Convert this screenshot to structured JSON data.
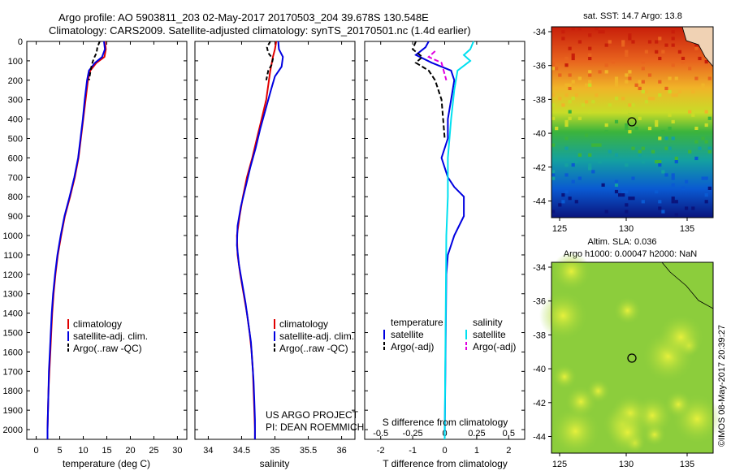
{
  "header": {
    "line1": "Argo profile: AO 5903811_203 02-May-2017 20170503_204 39.678S 130.548E",
    "line2": "Climatology: CARS2009. Satellite-adjusted climatology: synTS_20170501.nc (1.4d earlier)"
  },
  "colors": {
    "climatology": "#e00000",
    "satellite": "#0000e0",
    "argo": "#000000",
    "sat_salinity": "#00e0f0",
    "argo_salinity": "#e000e0"
  },
  "depth_ticks": [
    "0",
    "100",
    "200",
    "300",
    "400",
    "500",
    "600",
    "700",
    "800",
    "900",
    "1000",
    "1100",
    "1200",
    "1300",
    "1400",
    "1500",
    "1600",
    "1700",
    "1800",
    "1900",
    "2000"
  ],
  "chart_data": [
    {
      "type": "line",
      "xlabel": "temperature (deg C)",
      "xlim": [
        -2,
        32
      ],
      "ylim": [
        2050,
        0
      ],
      "xticks": [
        "0",
        "5",
        "10",
        "15",
        "20",
        "25",
        "30"
      ],
      "legend": [
        "climatology",
        "satellite-adj. clim.",
        "Argo(..raw -QC)"
      ],
      "series": [
        {
          "name": "climatology",
          "points": [
            [
              14.6,
              0
            ],
            [
              14.8,
              40
            ],
            [
              14.5,
              80
            ],
            [
              12.8,
              110
            ],
            [
              11.5,
              150
            ],
            [
              11.0,
              200
            ],
            [
              10.5,
              300
            ],
            [
              10.0,
              400
            ],
            [
              9.5,
              500
            ],
            [
              9.0,
              600
            ],
            [
              8.2,
              700
            ],
            [
              7.2,
              800
            ],
            [
              6.1,
              900
            ],
            [
              5.3,
              1000
            ],
            [
              4.6,
              1100
            ],
            [
              4.1,
              1200
            ],
            [
              3.7,
              1300
            ],
            [
              3.4,
              1400
            ],
            [
              3.2,
              1500
            ],
            [
              3.0,
              1600
            ],
            [
              2.8,
              1700
            ],
            [
              2.6,
              1800
            ],
            [
              2.5,
              1900
            ],
            [
              2.4,
              2000
            ],
            [
              2.4,
              2050
            ]
          ]
        },
        {
          "name": "satellite-adj. clim.",
          "points": [
            [
              14.4,
              0
            ],
            [
              14.6,
              40
            ],
            [
              14.0,
              80
            ],
            [
              12.5,
              110
            ],
            [
              11.2,
              150
            ],
            [
              10.8,
              200
            ],
            [
              10.3,
              300
            ],
            [
              9.9,
              400
            ],
            [
              9.4,
              500
            ],
            [
              8.9,
              600
            ],
            [
              8.1,
              700
            ],
            [
              7.1,
              800
            ],
            [
              6.0,
              900
            ],
            [
              5.2,
              1000
            ],
            [
              4.5,
              1100
            ],
            [
              4.0,
              1200
            ],
            [
              3.6,
              1300
            ],
            [
              3.3,
              1400
            ],
            [
              3.1,
              1500
            ],
            [
              2.9,
              1600
            ],
            [
              2.7,
              1700
            ],
            [
              2.6,
              1800
            ],
            [
              2.5,
              1900
            ],
            [
              2.4,
              2000
            ],
            [
              2.4,
              2050
            ]
          ]
        },
        {
          "name": "Argo(..raw -QC)",
          "points": [
            [
              13.5,
              0
            ],
            [
              13.0,
              30
            ],
            [
              12.8,
              60
            ],
            [
              12.2,
              90
            ],
            [
              11.8,
              120
            ],
            [
              11.5,
              160
            ],
            [
              11.2,
              200
            ]
          ]
        }
      ]
    },
    {
      "type": "line",
      "xlabel": "salinity",
      "xlim": [
        33.8,
        36.2
      ],
      "ylim": [
        2050,
        0
      ],
      "xticks": [
        "34",
        "34.5",
        "35",
        "35.5",
        "36"
      ],
      "legend": [
        "climatology",
        "satellite-adj. clim.",
        "Argo(..raw -QC)"
      ],
      "annotation": [
        "US ARGO PROJECT",
        "PI: DEAN ROEMMICH"
      ],
      "series": [
        {
          "name": "climatology",
          "points": [
            [
              35.02,
              0
            ],
            [
              35.0,
              40
            ],
            [
              34.97,
              80
            ],
            [
              34.93,
              150
            ],
            [
              34.87,
              300
            ],
            [
              34.8,
              400
            ],
            [
              34.73,
              500
            ],
            [
              34.66,
              600
            ],
            [
              34.58,
              700
            ],
            [
              34.52,
              800
            ],
            [
              34.47,
              900
            ],
            [
              34.43,
              1000
            ],
            [
              34.44,
              1100
            ],
            [
              34.48,
              1200
            ],
            [
              34.53,
              1300
            ],
            [
              34.58,
              1400
            ],
            [
              34.62,
              1500
            ],
            [
              34.65,
              1600
            ],
            [
              34.67,
              1700
            ],
            [
              34.68,
              1800
            ],
            [
              34.69,
              1900
            ],
            [
              34.7,
              2000
            ],
            [
              34.7,
              2050
            ]
          ]
        },
        {
          "name": "satellite-adj. clim.",
          "points": [
            [
              35.05,
              0
            ],
            [
              35.06,
              40
            ],
            [
              35.12,
              80
            ],
            [
              35.1,
              130
            ],
            [
              35.0,
              180
            ],
            [
              34.94,
              250
            ],
            [
              34.86,
              350
            ],
            [
              34.78,
              450
            ],
            [
              34.71,
              550
            ],
            [
              34.63,
              650
            ],
            [
              34.56,
              750
            ],
            [
              34.49,
              850
            ],
            [
              34.44,
              950
            ],
            [
              34.43,
              1050
            ],
            [
              34.46,
              1150
            ],
            [
              34.51,
              1250
            ],
            [
              34.56,
              1350
            ],
            [
              34.6,
              1450
            ],
            [
              34.64,
              1550
            ],
            [
              34.66,
              1650
            ],
            [
              34.68,
              1750
            ],
            [
              34.69,
              1850
            ],
            [
              34.7,
              1950
            ],
            [
              34.7,
              2050
            ]
          ]
        },
        {
          "name": "Argo(..raw -QC)",
          "points": [
            [
              34.93,
              0
            ],
            [
              34.88,
              30
            ],
            [
              34.9,
              60
            ],
            [
              34.97,
              90
            ],
            [
              34.95,
              120
            ],
            [
              34.9,
              150
            ],
            [
              34.87,
              200
            ]
          ]
        }
      ]
    },
    {
      "type": "line",
      "xlabel": "T difference from climatology",
      "xlabel_top": "S difference from climatology",
      "xlim": [
        -2.5,
        2.5
      ],
      "ylim": [
        2050,
        0
      ],
      "xticks": [
        "-2",
        "-1",
        "0",
        "1",
        "2"
      ],
      "xticks_s": [
        "-0.5",
        "-0.25",
        "0",
        "0.25",
        "0.5"
      ],
      "legend_t": [
        "temperature",
        "satellite",
        "Argo(-adj)"
      ],
      "legend_s": [
        "salinity",
        "satellite",
        "Argo(-adj)"
      ],
      "series": [
        {
          "name": "temperature satellite",
          "points": [
            [
              -0.5,
              0
            ],
            [
              -0.6,
              30
            ],
            [
              -0.9,
              70
            ],
            [
              -0.4,
              110
            ],
            [
              0.2,
              150
            ],
            [
              0.3,
              200
            ],
            [
              0.2,
              300
            ],
            [
              0.1,
              400
            ],
            [
              0.1,
              500
            ],
            [
              -0.1,
              600
            ],
            [
              0.1,
              700
            ],
            [
              0.3,
              750
            ],
            [
              0.6,
              800
            ],
            [
              0.6,
              900
            ],
            [
              0.3,
              1000
            ],
            [
              0.1,
              1100
            ],
            [
              0.05,
              1200
            ],
            [
              0.0,
              2050
            ]
          ]
        },
        {
          "name": "temperature Argo(-adj)",
          "points": [
            [
              -0.9,
              0
            ],
            [
              -1.0,
              40
            ],
            [
              -0.7,
              80
            ],
            [
              -0.9,
              110
            ],
            [
              -0.5,
              150
            ],
            [
              -0.3,
              200
            ],
            [
              -0.1,
              300
            ],
            [
              0.0,
              500
            ]
          ]
        },
        {
          "name": "salinity satellite",
          "points": [
            [
              0.9,
              0
            ],
            [
              0.8,
              40
            ],
            [
              0.6,
              70
            ],
            [
              0.8,
              100
            ],
            [
              0.4,
              150
            ],
            [
              0.3,
              250
            ],
            [
              0.2,
              400
            ],
            [
              0.1,
              600
            ],
            [
              0.1,
              800
            ],
            [
              0.05,
              1000
            ],
            [
              0.0,
              2050
            ]
          ]
        },
        {
          "name": "salinity Argo(-adj)",
          "points": [
            [
              -0.3,
              50
            ],
            [
              -0.5,
              80
            ],
            [
              -0.1,
              110
            ],
            [
              0.05,
              200
            ]
          ]
        }
      ]
    },
    {
      "type": "heatmap",
      "title": "sat. SST: 14.7  Argo: 13.8",
      "xticks": [
        "125",
        "130",
        "135"
      ],
      "yticks": [
        "-34",
        "-36",
        "-38",
        "-40",
        "-42",
        "-44"
      ],
      "marker": {
        "lon": 130.548,
        "lat": -39.678
      }
    },
    {
      "type": "heatmap",
      "title": "Altim. SLA: 0.036",
      "subtitle": "Argo h1000: 0.00047 h2000: NaN",
      "xticks": [
        "125",
        "130",
        "135"
      ],
      "yticks": [
        "-34",
        "-36",
        "-38",
        "-40",
        "-42",
        "-44"
      ],
      "marker": {
        "lon": 130.548,
        "lat": -39.678
      }
    }
  ],
  "side_label": "©IMOS 08-May-2017 20:39:27"
}
